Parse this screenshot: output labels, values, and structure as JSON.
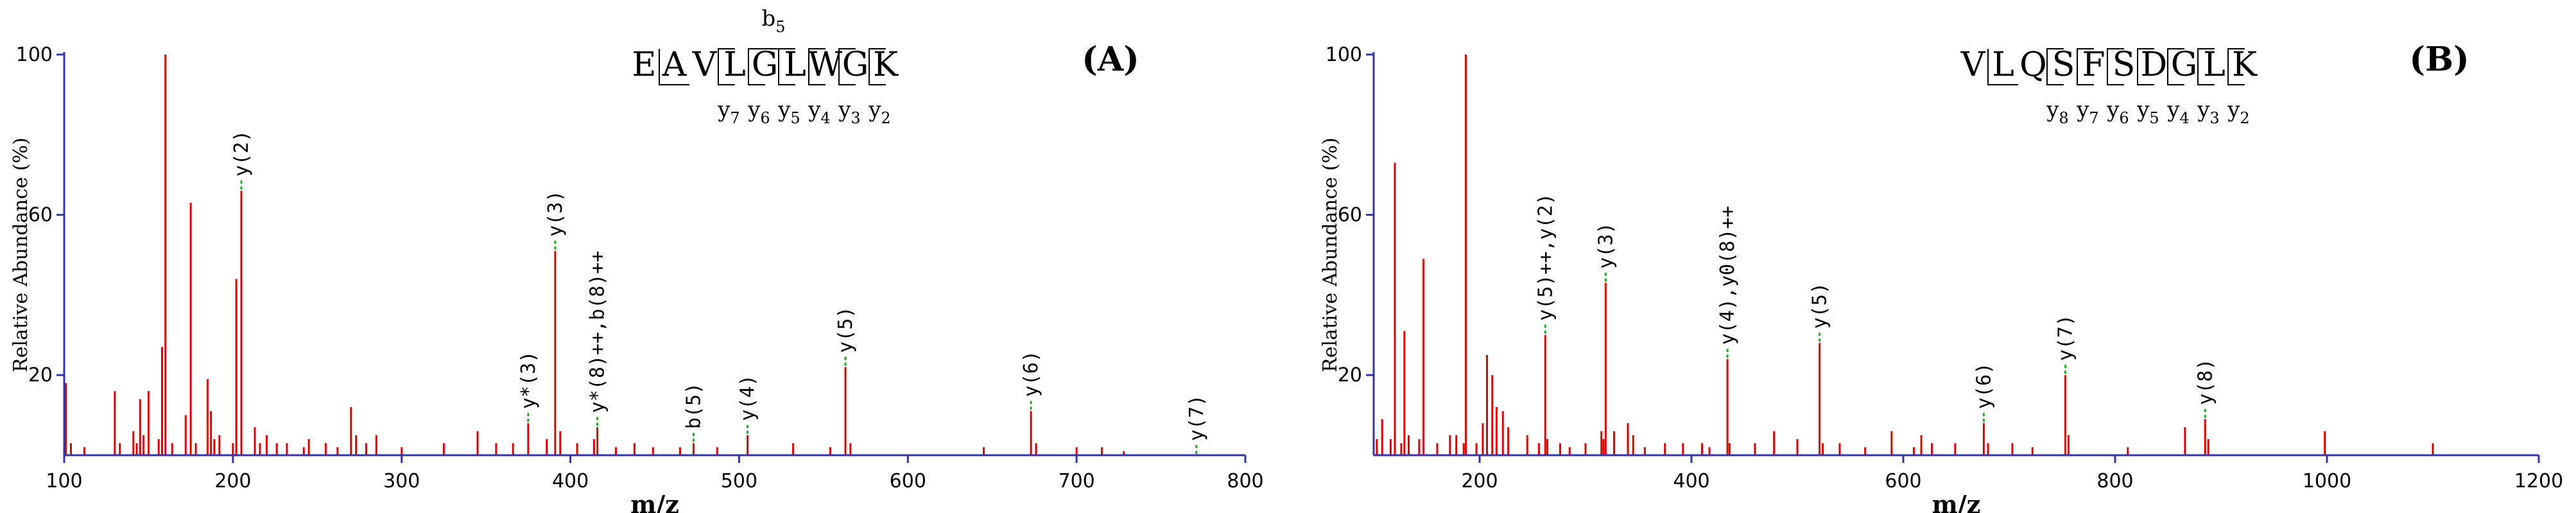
{
  "chart_data": [
    {
      "type": "bar",
      "panel": "(A)",
      "xlabel": "m/z",
      "ylabel": "Relative Abundance (%)",
      "xlim": [
        100,
        800
      ],
      "ylim": [
        0,
        100
      ],
      "xticks": [
        100,
        200,
        300,
        400,
        500,
        600,
        700,
        800
      ],
      "yticks": [
        20,
        60,
        100
      ],
      "sequence": [
        "E",
        "A",
        "V",
        "L",
        "G",
        "L",
        "W",
        "G",
        "K"
      ],
      "b_ions": [
        {
          "label": "b",
          "sub": "5",
          "after_residue": 5
        }
      ],
      "y_ions": [
        {
          "label": "y",
          "sub": "7",
          "residue": 3
        },
        {
          "label": "y",
          "sub": "6",
          "residue": 4
        },
        {
          "label": "y",
          "sub": "5",
          "residue": 5
        },
        {
          "label": "y",
          "sub": "4",
          "residue": 6
        },
        {
          "label": "y",
          "sub": "3",
          "residue": 7
        },
        {
          "label": "y",
          "sub": "2",
          "residue": 8
        }
      ],
      "peaks": [
        {
          "x": 101,
          "y": 18
        },
        {
          "x": 104,
          "y": 3
        },
        {
          "x": 112,
          "y": 2
        },
        {
          "x": 130,
          "y": 16
        },
        {
          "x": 133,
          "y": 3
        },
        {
          "x": 141,
          "y": 6
        },
        {
          "x": 143,
          "y": 3
        },
        {
          "x": 145,
          "y": 14
        },
        {
          "x": 147,
          "y": 5
        },
        {
          "x": 150,
          "y": 16
        },
        {
          "x": 156,
          "y": 4
        },
        {
          "x": 158,
          "y": 27
        },
        {
          "x": 160,
          "y": 100
        },
        {
          "x": 164,
          "y": 3
        },
        {
          "x": 172,
          "y": 10
        },
        {
          "x": 175,
          "y": 63
        },
        {
          "x": 178,
          "y": 3
        },
        {
          "x": 185,
          "y": 19
        },
        {
          "x": 187,
          "y": 11
        },
        {
          "x": 189,
          "y": 4
        },
        {
          "x": 192,
          "y": 5
        },
        {
          "x": 200,
          "y": 3
        },
        {
          "x": 202,
          "y": 44
        },
        {
          "x": 205,
          "y": 66
        },
        {
          "x": 213,
          "y": 7
        },
        {
          "x": 216,
          "y": 3
        },
        {
          "x": 220,
          "y": 5
        },
        {
          "x": 226,
          "y": 3
        },
        {
          "x": 232,
          "y": 3
        },
        {
          "x": 242,
          "y": 2
        },
        {
          "x": 245,
          "y": 4
        },
        {
          "x": 255,
          "y": 3
        },
        {
          "x": 262,
          "y": 2
        },
        {
          "x": 270,
          "y": 12
        },
        {
          "x": 273,
          "y": 5
        },
        {
          "x": 279,
          "y": 3
        },
        {
          "x": 285,
          "y": 5
        },
        {
          "x": 300,
          "y": 2
        },
        {
          "x": 325,
          "y": 3
        },
        {
          "x": 345,
          "y": 6
        },
        {
          "x": 356,
          "y": 3
        },
        {
          "x": 366,
          "y": 3
        },
        {
          "x": 375,
          "y": 8
        },
        {
          "x": 386,
          "y": 4
        },
        {
          "x": 391,
          "y": 51
        },
        {
          "x": 394,
          "y": 6
        },
        {
          "x": 404,
          "y": 3
        },
        {
          "x": 414,
          "y": 4
        },
        {
          "x": 416,
          "y": 7
        },
        {
          "x": 427,
          "y": 2
        },
        {
          "x": 438,
          "y": 3
        },
        {
          "x": 449,
          "y": 2
        },
        {
          "x": 465,
          "y": 2
        },
        {
          "x": 473,
          "y": 3
        },
        {
          "x": 487,
          "y": 2
        },
        {
          "x": 505,
          "y": 5
        },
        {
          "x": 532,
          "y": 3
        },
        {
          "x": 554,
          "y": 2
        },
        {
          "x": 563,
          "y": 22
        },
        {
          "x": 566,
          "y": 3
        },
        {
          "x": 645,
          "y": 2
        },
        {
          "x": 673,
          "y": 11
        },
        {
          "x": 676,
          "y": 3
        },
        {
          "x": 700,
          "y": 2
        },
        {
          "x": 715,
          "y": 2
        },
        {
          "x": 728,
          "y": 1
        }
      ],
      "annotations": [
        {
          "x": 205,
          "y": 66,
          "label": "y(2)"
        },
        {
          "x": 375,
          "y": 8,
          "label": "y*(3)"
        },
        {
          "x": 391,
          "y": 51,
          "label": "y(3)"
        },
        {
          "x": 416,
          "y": 7,
          "label": "y*(8)++,b(8)++"
        },
        {
          "x": 473,
          "y": 3,
          "label": "b(5)"
        },
        {
          "x": 505,
          "y": 5,
          "label": "y(4)"
        },
        {
          "x": 563,
          "y": 22,
          "label": "y(5)"
        },
        {
          "x": 673,
          "y": 11,
          "label": "y(6)"
        },
        {
          "x": 771,
          "y": 0,
          "label": "y(7)"
        }
      ]
    },
    {
      "type": "bar",
      "panel": "(B)",
      "xlabel": "m/z",
      "ylabel": "Relative Abundance (%)",
      "xlim": [
        100,
        1200
      ],
      "ylim": [
        0,
        100
      ],
      "xticks": [
        200,
        400,
        600,
        800,
        1000,
        1200
      ],
      "yticks": [
        20,
        60,
        100
      ],
      "sequence": [
        "V",
        "L",
        "Q",
        "S",
        "F",
        "S",
        "D",
        "G",
        "L",
        "K"
      ],
      "b_ions": [],
      "y_ions": [
        {
          "label": "y",
          "sub": "8",
          "residue": 3
        },
        {
          "label": "y",
          "sub": "7",
          "residue": 4
        },
        {
          "label": "y",
          "sub": "6",
          "residue": 5
        },
        {
          "label": "y",
          "sub": "5",
          "residue": 6
        },
        {
          "label": "y",
          "sub": "4",
          "residue": 7
        },
        {
          "label": "y",
          "sub": "3",
          "residue": 8
        },
        {
          "label": "y",
          "sub": "2",
          "residue": 9
        }
      ],
      "peaks": [
        {
          "x": 103,
          "y": 4
        },
        {
          "x": 108,
          "y": 9
        },
        {
          "x": 116,
          "y": 4
        },
        {
          "x": 120,
          "y": 73
        },
        {
          "x": 126,
          "y": 3
        },
        {
          "x": 129,
          "y": 31
        },
        {
          "x": 133,
          "y": 5
        },
        {
          "x": 143,
          "y": 4
        },
        {
          "x": 147,
          "y": 49
        },
        {
          "x": 160,
          "y": 3
        },
        {
          "x": 172,
          "y": 5
        },
        {
          "x": 178,
          "y": 5
        },
        {
          "x": 185,
          "y": 3
        },
        {
          "x": 187,
          "y": 100
        },
        {
          "x": 197,
          "y": 3
        },
        {
          "x": 203,
          "y": 8
        },
        {
          "x": 207,
          "y": 25
        },
        {
          "x": 212,
          "y": 20
        },
        {
          "x": 216,
          "y": 12
        },
        {
          "x": 222,
          "y": 11
        },
        {
          "x": 227,
          "y": 7
        },
        {
          "x": 245,
          "y": 5
        },
        {
          "x": 256,
          "y": 3
        },
        {
          "x": 262,
          "y": 30
        },
        {
          "x": 264,
          "y": 4
        },
        {
          "x": 276,
          "y": 3
        },
        {
          "x": 285,
          "y": 2
        },
        {
          "x": 300,
          "y": 3
        },
        {
          "x": 315,
          "y": 6
        },
        {
          "x": 317,
          "y": 4
        },
        {
          "x": 319,
          "y": 43
        },
        {
          "x": 327,
          "y": 6
        },
        {
          "x": 340,
          "y": 8
        },
        {
          "x": 345,
          "y": 5
        },
        {
          "x": 356,
          "y": 2
        },
        {
          "x": 375,
          "y": 3
        },
        {
          "x": 392,
          "y": 3
        },
        {
          "x": 410,
          "y": 3
        },
        {
          "x": 417,
          "y": 2
        },
        {
          "x": 434,
          "y": 24
        },
        {
          "x": 436,
          "y": 3
        },
        {
          "x": 460,
          "y": 3
        },
        {
          "x": 478,
          "y": 6
        },
        {
          "x": 500,
          "y": 4
        },
        {
          "x": 521,
          "y": 28
        },
        {
          "x": 524,
          "y": 3
        },
        {
          "x": 540,
          "y": 3
        },
        {
          "x": 564,
          "y": 2
        },
        {
          "x": 589,
          "y": 6
        },
        {
          "x": 610,
          "y": 2
        },
        {
          "x": 617,
          "y": 5
        },
        {
          "x": 627,
          "y": 3
        },
        {
          "x": 649,
          "y": 3
        },
        {
          "x": 676,
          "y": 8
        },
        {
          "x": 680,
          "y": 3
        },
        {
          "x": 703,
          "y": 3
        },
        {
          "x": 722,
          "y": 2
        },
        {
          "x": 753,
          "y": 20
        },
        {
          "x": 756,
          "y": 5
        },
        {
          "x": 812,
          "y": 2
        },
        {
          "x": 866,
          "y": 7
        },
        {
          "x": 885,
          "y": 9
        },
        {
          "x": 888,
          "y": 4
        },
        {
          "x": 998,
          "y": 6
        },
        {
          "x": 1100,
          "y": 3
        }
      ],
      "annotations": [
        {
          "x": 262,
          "y": 30,
          "label": "y(5)++,y(2)"
        },
        {
          "x": 319,
          "y": 43,
          "label": "y(3)"
        },
        {
          "x": 434,
          "y": 24,
          "label": "y(4),y0(8)++"
        },
        {
          "x": 521,
          "y": 28,
          "label": "y(5)"
        },
        {
          "x": 676,
          "y": 8,
          "label": "y(6)"
        },
        {
          "x": 753,
          "y": 20,
          "label": "y(7)"
        },
        {
          "x": 885,
          "y": 9,
          "label": "y(8)"
        }
      ]
    }
  ]
}
